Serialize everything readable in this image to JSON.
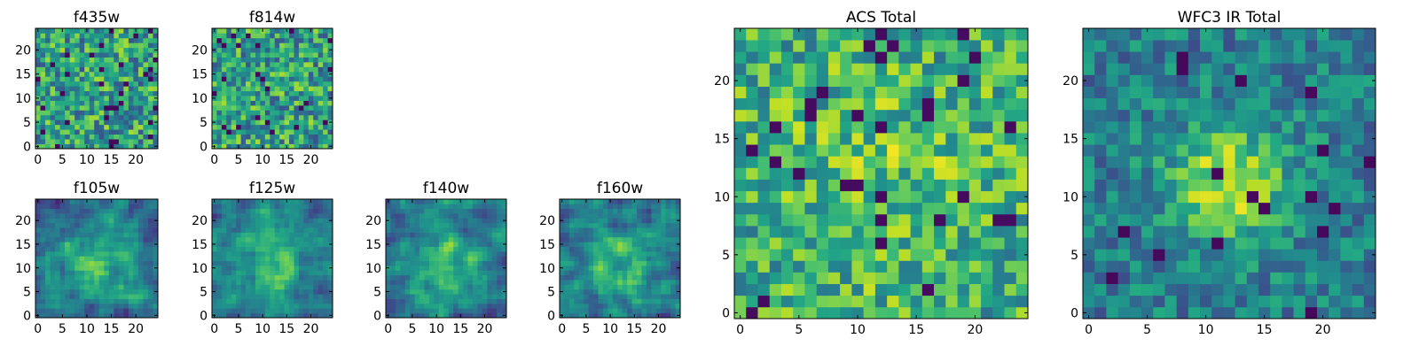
{
  "figure": {
    "background": "#ffffff",
    "colormap": "viridis"
  },
  "chart_data": [
    {
      "id": "f435w",
      "type": "heatmap",
      "title": "f435w",
      "grid_size": 25,
      "pattern": "noise",
      "xticks": [
        0,
        5,
        10,
        15,
        20
      ],
      "yticks": [
        0,
        5,
        10,
        15,
        20
      ],
      "xlim": [
        -0.5,
        24.5
      ],
      "ylim": [
        -0.5,
        24.5
      ]
    },
    {
      "id": "f814w",
      "type": "heatmap",
      "title": "f814w",
      "grid_size": 25,
      "pattern": "noise",
      "xticks": [
        0,
        5,
        10,
        15,
        20
      ],
      "yticks": [
        0,
        5,
        10,
        15,
        20
      ],
      "xlim": [
        -0.5,
        24.5
      ],
      "ylim": [
        -0.5,
        24.5
      ]
    },
    {
      "id": "f105w",
      "type": "heatmap",
      "title": "f105w",
      "grid_size": 25,
      "pattern": "smooth_central",
      "xticks": [
        0,
        5,
        10,
        15,
        20
      ],
      "yticks": [
        0,
        5,
        10,
        15,
        20
      ],
      "xlim": [
        -0.5,
        24.5
      ],
      "ylim": [
        -0.5,
        24.5
      ]
    },
    {
      "id": "f125w",
      "type": "heatmap",
      "title": "f125w",
      "grid_size": 25,
      "pattern": "smooth_central",
      "xticks": [
        0,
        5,
        10,
        15,
        20
      ],
      "yticks": [
        0,
        5,
        10,
        15,
        20
      ],
      "xlim": [
        -0.5,
        24.5
      ],
      "ylim": [
        -0.5,
        24.5
      ]
    },
    {
      "id": "f140w",
      "type": "heatmap",
      "title": "f140w",
      "grid_size": 25,
      "pattern": "smooth_central",
      "xticks": [
        0,
        5,
        10,
        15,
        20
      ],
      "yticks": [
        0,
        5,
        10,
        15,
        20
      ],
      "xlim": [
        -0.5,
        24.5
      ],
      "ylim": [
        -0.5,
        24.5
      ]
    },
    {
      "id": "f160w",
      "type": "heatmap",
      "title": "f160w",
      "grid_size": 25,
      "pattern": "smooth_central",
      "xticks": [
        0,
        5,
        10,
        15,
        20
      ],
      "yticks": [
        0,
        5,
        10,
        15,
        20
      ],
      "xlim": [
        -0.5,
        24.5
      ],
      "ylim": [
        -0.5,
        24.5
      ]
    },
    {
      "id": "acs_total",
      "type": "heatmap",
      "title": "ACS Total",
      "grid_size": 25,
      "pattern": "noise_bright",
      "xticks": [
        0,
        5,
        10,
        15,
        20
      ],
      "yticks": [
        0,
        5,
        10,
        15,
        20
      ],
      "xlim": [
        -0.5,
        24.5
      ],
      "ylim": [
        -0.5,
        24.5
      ]
    },
    {
      "id": "wfc3_ir_total",
      "type": "heatmap",
      "title": "WFC3 IR Total",
      "grid_size": 25,
      "pattern": "central_source",
      "xticks": [
        0,
        5,
        10,
        15,
        20
      ],
      "yticks": [
        0,
        5,
        10,
        15,
        20
      ],
      "xlim": [
        -0.5,
        24.5
      ],
      "ylim": [
        -0.5,
        24.5
      ]
    }
  ]
}
